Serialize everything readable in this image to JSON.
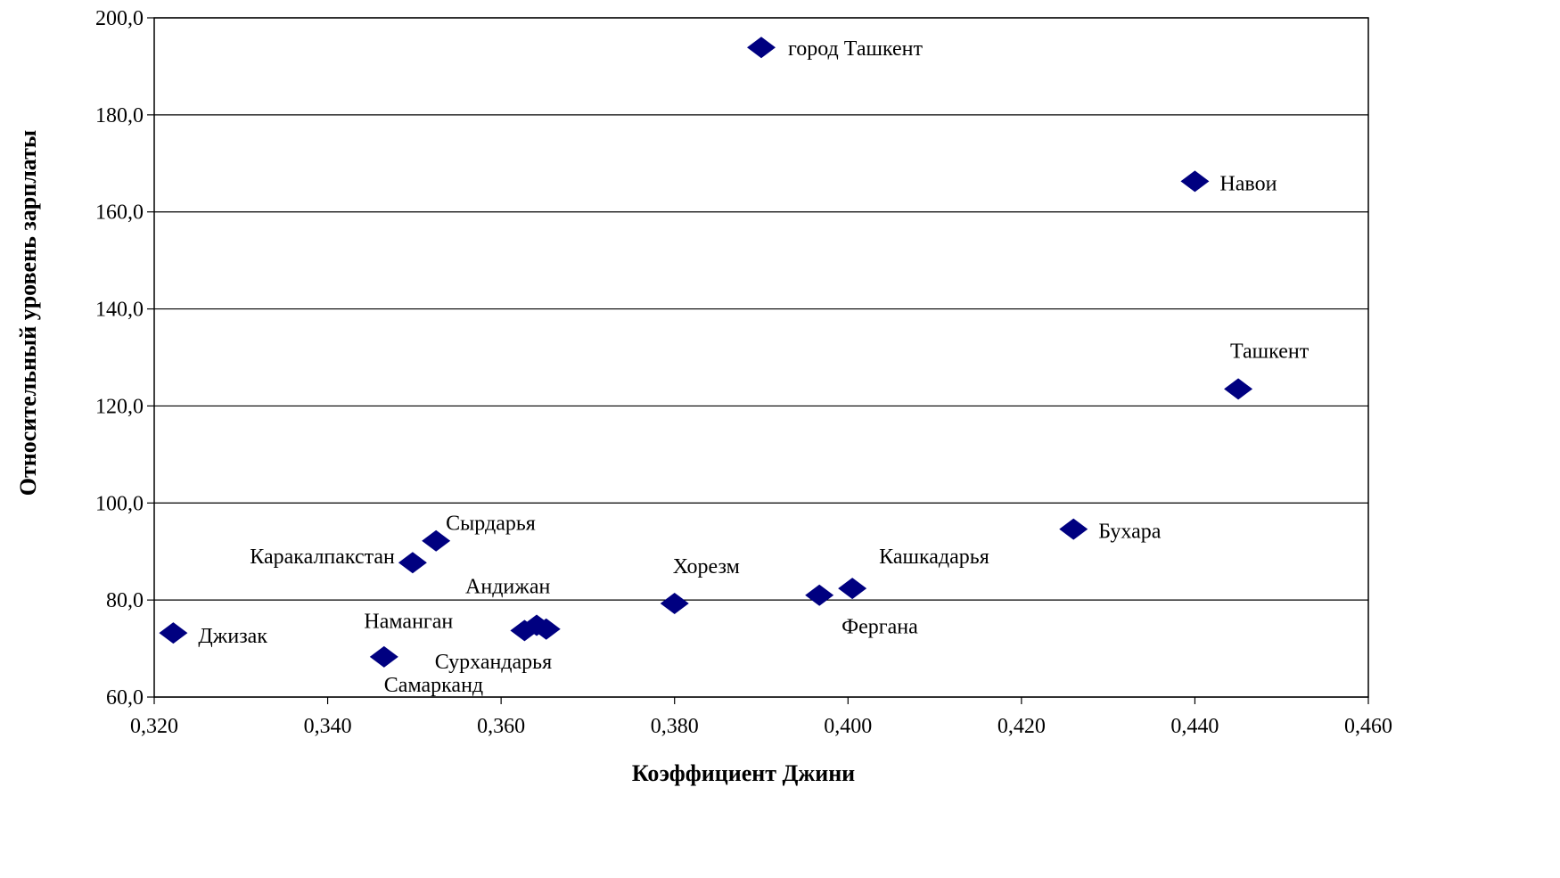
{
  "chart_data": {
    "type": "scatter",
    "title": "",
    "xlabel": "Коэффициент Джини",
    "ylabel": "Относительный уровень зарплаты",
    "xlim": [
      0.32,
      0.46
    ],
    "ylim": [
      60,
      200
    ],
    "x_ticks": [
      "0,320",
      "0,340",
      "0,360",
      "0,380",
      "0,400",
      "0,420",
      "0,440",
      "0,460"
    ],
    "y_ticks": [
      "60,0",
      "80,0",
      "100,0",
      "120,0",
      "140,0",
      "160,0",
      "180,0",
      "200,0"
    ],
    "grid": "horizontal",
    "marker": "diamond",
    "marker_color": "#000080",
    "points": [
      {
        "label": "город Ташкент",
        "x": 0.39,
        "y": 193.9
      },
      {
        "label": "Навои",
        "x": 0.44,
        "y": 166.3
      },
      {
        "label": "Ташкент",
        "x": 0.445,
        "y": 123.5
      },
      {
        "label": "Бухара",
        "x": 0.426,
        "y": 94.6
      },
      {
        "label": "Кашкадарья",
        "x": 0.4005,
        "y": 82.4
      },
      {
        "label": "Фергана",
        "x": 0.3967,
        "y": 81.0
      },
      {
        "label": "Хорезм",
        "x": 0.38,
        "y": 79.3
      },
      {
        "label": "Сырдарья",
        "x": 0.3525,
        "y": 92.2
      },
      {
        "label": "Каракалпакстан",
        "x": 0.3498,
        "y": 87.7
      },
      {
        "label": "Андижан",
        "x": 0.3641,
        "y": 74.8
      },
      {
        "label": "Сурхандарья",
        "x": 0.3652,
        "y": 74.0
      },
      {
        "label": "Наманган",
        "x": 0.3627,
        "y": 73.7
      },
      {
        "label": "Джизак",
        "x": 0.3222,
        "y": 73.2
      },
      {
        "label": "Самарканд",
        "x": 0.3465,
        "y": 68.3
      }
    ]
  }
}
